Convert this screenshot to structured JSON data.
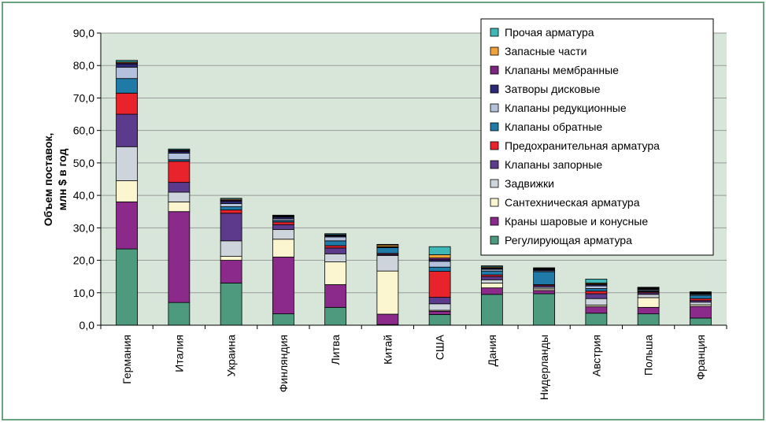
{
  "chart_data": {
    "type": "bar",
    "stacked": true,
    "title": "",
    "ylabel_line1": "Объем поставок,",
    "ylabel_line2": "млн $ в год",
    "xlabel": "",
    "ylim": [
      0,
      90
    ],
    "yticks": [
      "0,0",
      "10,0",
      "20,0",
      "30,0",
      "40,0",
      "50,0",
      "60,0",
      "70,0",
      "80,0",
      "90,0"
    ],
    "grid": true,
    "legend_position": "top-right",
    "plot_background": "#d8e6da",
    "categories": [
      "Германия",
      "Италия",
      "Украина",
      "Финляндия",
      "Литва",
      "Китай",
      "США",
      "Дания",
      "Нидерланды",
      "Австрия",
      "Польша",
      "Франция"
    ],
    "series": [
      {
        "name": "Регулирующая арматура",
        "color": "#4e9a7e",
        "values": [
          23.5,
          7,
          13,
          3.5,
          5.5,
          0.2,
          3.3,
          9.5,
          9.7,
          3.7,
          3.5,
          2.2
        ]
      },
      {
        "name": "Краны шаровые и конусные",
        "color": "#8b2a8b",
        "values": [
          14.5,
          28,
          7,
          17.5,
          7,
          3.2,
          1,
          2,
          1,
          2,
          2,
          3.6
        ]
      },
      {
        "name": "Сантехническая арматура",
        "color": "#fbf5d0",
        "values": [
          6.5,
          3,
          1.2,
          5.5,
          7,
          13.3,
          0.3,
          1.5,
          0.5,
          0.5,
          3,
          0.5
        ]
      },
      {
        "name": "Задвижки",
        "color": "#cdd4dc",
        "values": [
          10.5,
          3,
          4.8,
          3,
          2.5,
          4.8,
          2,
          1,
          0.5,
          2,
          1,
          0.8
        ]
      },
      {
        "name": "Клапаны запорные",
        "color": "#5c3b8c",
        "values": [
          10,
          3,
          8.5,
          1.5,
          1.8,
          0.3,
          2,
          1,
          0.5,
          1.5,
          0.5,
          0.5
        ]
      },
      {
        "name": "Предохранительная арматура",
        "color": "#e8232b",
        "values": [
          6.5,
          6.5,
          1,
          0.8,
          0.7,
          0.3,
          8,
          0.5,
          0.3,
          0.8,
          0.3,
          0.6
        ]
      },
      {
        "name": "Клапаны обратные",
        "color": "#1f7aa8",
        "values": [
          4.5,
          0.5,
          1,
          0.5,
          1.5,
          1.8,
          1.3,
          1.2,
          4,
          0.8,
          0.3,
          1
        ]
      },
      {
        "name": "Клапаны редукционные",
        "color": "#b4c1dd",
        "values": [
          3.5,
          2,
          1,
          0.5,
          1.2,
          0.1,
          1.8,
          0.5,
          0.3,
          0.8,
          0.3,
          0.3
        ]
      },
      {
        "name": "Затворы дисковые",
        "color": "#2c2a77",
        "values": [
          1,
          0.5,
          0.7,
          0.5,
          0.3,
          0.1,
          0.5,
          0.3,
          0.3,
          0.4,
          0.2,
          0.2
        ]
      },
      {
        "name": "Клапаны мембранные",
        "color": "#7d2682",
        "values": [
          0.3,
          0.3,
          0.3,
          0.2,
          0.2,
          0.1,
          0.5,
          0.2,
          0.2,
          0.2,
          0.2,
          0.2
        ]
      },
      {
        "name": "Запасные части",
        "color": "#f2a23a",
        "values": [
          0.3,
          0.2,
          0.3,
          0.2,
          0.2,
          0.5,
          1,
          0.3,
          0.2,
          0.3,
          0.2,
          0.2
        ]
      },
      {
        "name": "Прочая арматура",
        "color": "#3fb7b7",
        "values": [
          0.5,
          0.3,
          0.3,
          0.2,
          0.3,
          0.2,
          2.5,
          0.3,
          0.2,
          1.2,
          0.2,
          0.2
        ]
      }
    ]
  }
}
